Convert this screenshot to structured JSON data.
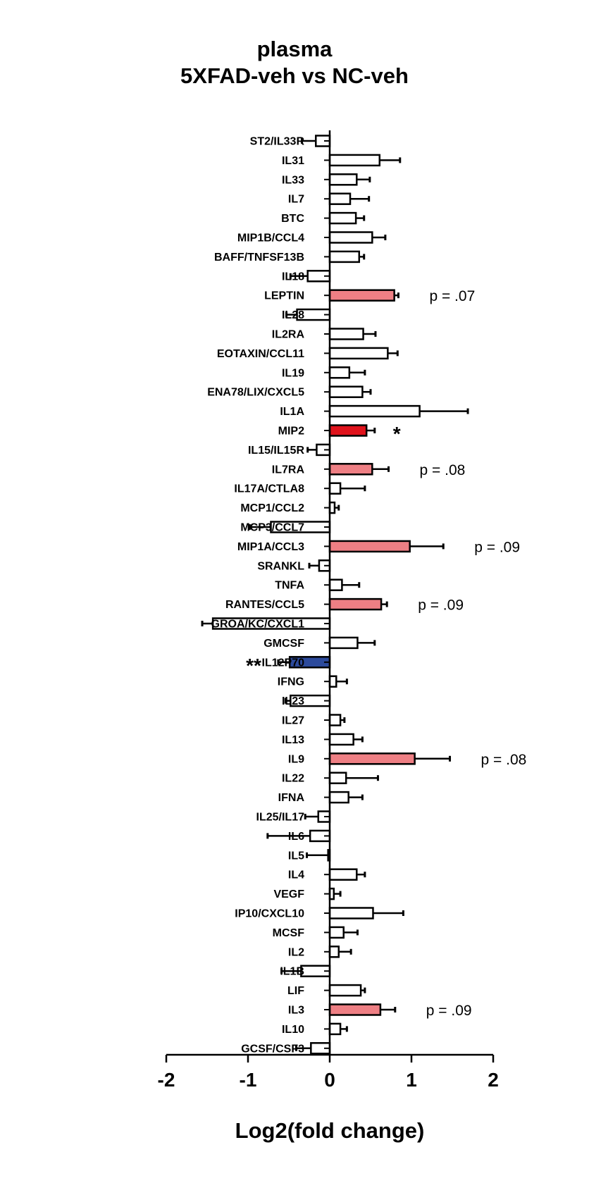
{
  "chart_data": {
    "type": "bar",
    "orientation": "horizontal",
    "title": "plasma",
    "subtitle": "5XFAD-veh vs NC-veh",
    "xlabel": "Log2(fold change)",
    "ylabel": "",
    "xlim": [
      -2,
      2
    ],
    "x_ticks": [
      "-2",
      "-1",
      "0",
      "1",
      "2"
    ],
    "grid": false,
    "legend": "none",
    "colors": {
      "default_fill": "#ffffff",
      "trend_fill": "#ee7f84",
      "significant_up_fill": "#e0131c",
      "significant_down_fill": "#2c4a9c",
      "outline": "#000000"
    },
    "categories": [
      "ST2/IL33R",
      "IL31",
      "IL33",
      "IL7",
      "BTC",
      "MIP1B/CCL4",
      "BAFF/TNFSF13B",
      "IL18",
      "LEPTIN",
      "IL28",
      "IL2RA",
      "EOTAXIN/CCL11",
      "IL19",
      "ENA78/LIX/CXCL5",
      "IL1A",
      "MIP2",
      "IL15/IL15R",
      "IL7RA",
      "IL17A/CTLA8",
      "MCP1/CCL2",
      "MCP3/CCL7",
      "MIP1A/CCL3",
      "SRANKL",
      "TNFA",
      "RANTES/CCL5",
      "GROA/KC/CXCL1",
      "GMCSF",
      "IL12P70",
      "IFNG",
      "IL23",
      "IL27",
      "IL13",
      "IL9",
      "IL22",
      "IFNA",
      "IL25/IL17",
      "IL6",
      "IL5",
      "IL4",
      "VEGF",
      "IP10/CXCL10",
      "MCSF",
      "IL2",
      "IL1B",
      "LIF",
      "IL3",
      "IL10",
      "GCSF/CSF3"
    ],
    "values": [
      -0.17,
      0.61,
      0.33,
      0.25,
      0.32,
      0.52,
      0.36,
      -0.27,
      0.79,
      -0.4,
      0.41,
      0.71,
      0.24,
      0.4,
      1.1,
      0.45,
      -0.16,
      0.52,
      0.13,
      0.06,
      -0.72,
      0.98,
      -0.13,
      0.15,
      0.63,
      -1.43,
      0.34,
      -0.49,
      0.08,
      -0.48,
      0.13,
      0.29,
      1.04,
      0.2,
      0.23,
      -0.14,
      -0.24,
      -0.02,
      0.33,
      0.05,
      0.53,
      0.17,
      0.11,
      -0.35,
      0.38,
      0.62,
      0.13,
      -0.23
    ],
    "errors": [
      0.17,
      0.25,
      0.16,
      0.23,
      0.1,
      0.16,
      0.06,
      0.21,
      0.05,
      0.13,
      0.15,
      0.12,
      0.19,
      0.1,
      0.59,
      0.1,
      0.11,
      0.2,
      0.3,
      0.05,
      0.26,
      0.41,
      0.12,
      0.21,
      0.07,
      0.13,
      0.21,
      0.14,
      0.13,
      0.06,
      0.05,
      0.11,
      0.43,
      0.39,
      0.17,
      0.16,
      0.52,
      0.26,
      0.1,
      0.08,
      0.37,
      0.17,
      0.15,
      0.24,
      0.05,
      0.18,
      0.08,
      0.18
    ],
    "bar_colors": [
      "default",
      "default",
      "default",
      "default",
      "default",
      "default",
      "default",
      "default",
      "trend",
      "default",
      "default",
      "default",
      "default",
      "default",
      "default",
      "significant_up",
      "default",
      "trend",
      "default",
      "default",
      "default",
      "trend",
      "default",
      "default",
      "trend",
      "default",
      "default",
      "significant_down",
      "default",
      "default",
      "default",
      "default",
      "trend",
      "default",
      "default",
      "default",
      "default",
      "default",
      "default",
      "default",
      "default",
      "default",
      "default",
      "default",
      "default",
      "trend",
      "default",
      "default"
    ],
    "annotations": [
      {
        "category": "LEPTIN",
        "text": "p = .07"
      },
      {
        "category": "MIP2",
        "text": "*"
      },
      {
        "category": "IL7RA",
        "text": "p = .08"
      },
      {
        "category": "MIP1A/CCL3",
        "text": "p = .09"
      },
      {
        "category": "RANTES/CCL5",
        "text": "p = .09"
      },
      {
        "category": "IL12P70",
        "text": "**"
      },
      {
        "category": "IL9",
        "text": "p = .08"
      },
      {
        "category": "IL3",
        "text": "p = .09"
      }
    ]
  }
}
